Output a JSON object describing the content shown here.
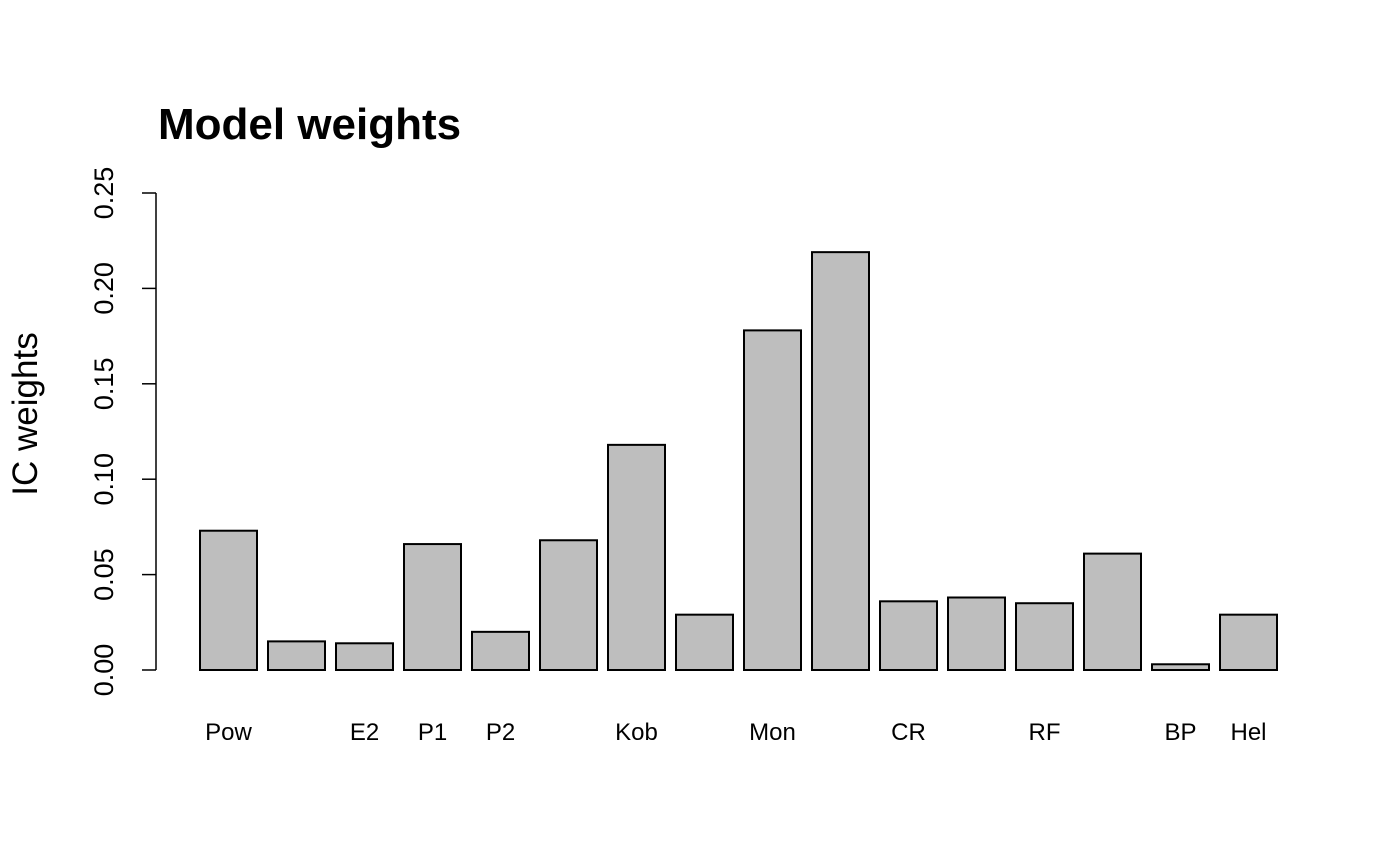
{
  "chart_data": {
    "type": "bar",
    "title": "Model weights",
    "xlabel": "",
    "ylabel": "IC weights",
    "ylim": [
      0,
      0.25
    ],
    "yticks": [
      "0.00",
      "0.05",
      "0.10",
      "0.15",
      "0.20",
      "0.25"
    ],
    "categories": [
      "Pow",
      "",
      "E2",
      "P1",
      "P2",
      "",
      "Kob",
      "",
      "Mon",
      "",
      "CR",
      "",
      "RF",
      "",
      "BP",
      "Hel"
    ],
    "values": [
      0.073,
      0.015,
      0.014,
      0.066,
      0.02,
      0.068,
      0.118,
      0.029,
      0.178,
      0.219,
      0.036,
      0.038,
      0.035,
      0.061,
      0.003,
      0.029
    ],
    "colors": {
      "bar_fill": "#bebebe",
      "bar_stroke": "#000000",
      "axis": "#000000"
    },
    "grid": false,
    "legend": "none"
  }
}
